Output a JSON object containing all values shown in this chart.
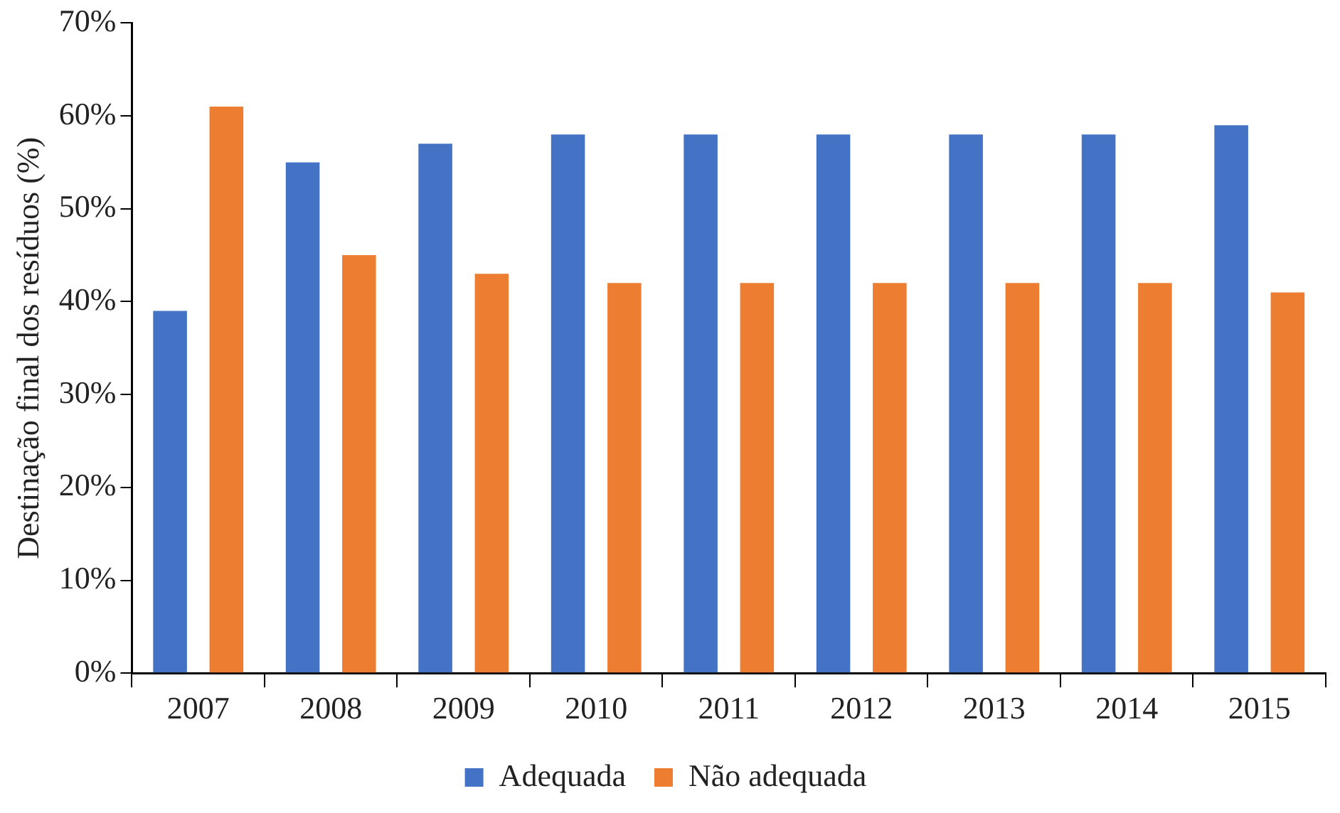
{
  "chart_data": {
    "type": "bar",
    "ylabel": "Destinação final dos resíduos (%)",
    "categories": [
      "2007",
      "2008",
      "2009",
      "2010",
      "2011",
      "2012",
      "2013",
      "2014",
      "2015"
    ],
    "series": [
      {
        "name": "Adequada",
        "color": "#4472c4",
        "values": [
          39,
          55,
          57,
          58,
          58,
          58,
          58,
          58,
          59
        ]
      },
      {
        "name": "Não adequada",
        "color": "#ed7d31",
        "values": [
          61,
          45,
          43,
          42,
          42,
          42,
          42,
          42,
          41
        ]
      }
    ],
    "ylim": [
      0,
      70
    ],
    "yticks": [
      {
        "value": 0,
        "label": "0%"
      },
      {
        "value": 10,
        "label": "10%"
      },
      {
        "value": 20,
        "label": "20%"
      },
      {
        "value": 30,
        "label": "30%"
      },
      {
        "value": 40,
        "label": "40%"
      },
      {
        "value": 50,
        "label": "50%"
      },
      {
        "value": 60,
        "label": "60%"
      },
      {
        "value": 70,
        "label": "70%"
      }
    ],
    "grid": false,
    "legend": "bottom"
  }
}
